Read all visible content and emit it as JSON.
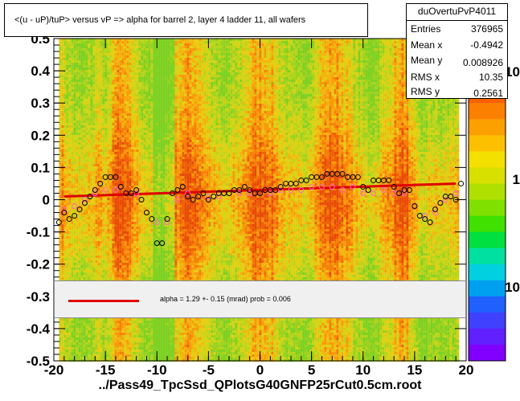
{
  "title": "<(u - uP)/tuP> versus   vP => alpha for barrel 2, layer 4 ladder 11, all wafers",
  "xfile_label": "../Pass49_TpcSsd_QPlotsG40GNFP25rCut0.5cm.root",
  "stats": {
    "name": "duOvertuPvP4011",
    "rows": [
      {
        "label": "Entries",
        "value": "376965"
      },
      {
        "label": "Mean x",
        "value": "-0.4942"
      },
      {
        "label": "Mean y",
        "value": "0.008926"
      },
      {
        "label": "RMS x",
        "value": "10.35"
      },
      {
        "label": "RMS y",
        "value": "0.2561"
      }
    ]
  },
  "legend": {
    "fit_text": "alpha =     1.29 +-  0.15 (mrad) prob = 0.006"
  },
  "colorbar": {
    "tick_labels": [
      "10",
      "1",
      "10"
    ]
  },
  "colors": {
    "fit": "#e00000",
    "profile_black": "#000000",
    "profile_pink": "#ff66cc"
  },
  "chart_data": {
    "type": "heatmap",
    "title": "<(u - uP)/tuP> versus   vP => alpha for barrel 2, layer 4 ladder 11, all wafers",
    "xlim": [
      -20,
      20
    ],
    "ylim": [
      -0.5,
      0.5
    ],
    "x_ticks": [
      "-20",
      "-15",
      "-10",
      "-5",
      "0",
      "5",
      "10",
      "15",
      "20"
    ],
    "y_ticks": [
      "-0.5",
      "-0.4",
      "-0.3",
      "-0.2",
      "-0.1",
      "0",
      "0.1",
      "0.2",
      "0.3",
      "0.4",
      "0.5"
    ],
    "fit_line": {
      "x": [
        -19,
        19
      ],
      "y": [
        0.01,
        0.05
      ]
    },
    "profile_black": {
      "x": [
        -19.5,
        -19,
        -18.5,
        -18,
        -17.5,
        -17,
        -16.5,
        -16,
        -15.5,
        -15,
        -14.5,
        -14,
        -13.5,
        -13,
        -12.5,
        -12,
        -11.5,
        -11,
        -10.5,
        -10,
        -9.5,
        -9,
        -8.5,
        -8,
        -7.5,
        -7,
        -6.5,
        -6,
        -5.5,
        -5,
        -4.5,
        -4,
        -3.5,
        -3,
        -2.5,
        -2,
        -1.5,
        -1,
        -0.5,
        0,
        0.5,
        1,
        1.5,
        2,
        2.5,
        3,
        3.5,
        4,
        4.5,
        5,
        5.5,
        6,
        6.5,
        7,
        7.5,
        8,
        8.5,
        9,
        9.5,
        10,
        10.5,
        11,
        11.5,
        12,
        12.5,
        13,
        13.5,
        14,
        14.5,
        15,
        15.5,
        16,
        16.5,
        17,
        17.5,
        18,
        18.5,
        19,
        19.5
      ],
      "y": [
        -0.07,
        -0.04,
        -0.06,
        -0.05,
        -0.03,
        -0.01,
        0.01,
        0.03,
        0.05,
        0.07,
        0.07,
        0.07,
        0.04,
        0.02,
        0.02,
        0.03,
        0.0,
        -0.04,
        -0.06,
        -0.135,
        -0.135,
        -0.06,
        0.02,
        0.03,
        0.04,
        0.01,
        0.0,
        0.01,
        0.02,
        0.0,
        0.01,
        0.02,
        0.02,
        0.02,
        0.03,
        0.03,
        0.04,
        0.03,
        0.02,
        0.02,
        0.03,
        0.03,
        0.03,
        0.04,
        0.05,
        0.05,
        0.05,
        0.06,
        0.06,
        0.07,
        0.07,
        0.07,
        0.08,
        0.08,
        0.08,
        0.08,
        0.07,
        0.07,
        0.07,
        0.04,
        0.03,
        0.06,
        0.06,
        0.06,
        0.06,
        0.04,
        0.02,
        0.03,
        0.03,
        -0.02,
        -0.05,
        -0.06,
        -0.07,
        -0.03,
        -0.01,
        0.01,
        0.01,
        0.0,
        0.05
      ]
    },
    "profile_pink": {
      "x": [
        -19,
        -18,
        -17,
        -16,
        -15,
        -14,
        -13,
        -12,
        -11,
        -10,
        -9,
        -8,
        -7,
        -6,
        -5,
        -4,
        -3,
        -2,
        -1,
        0,
        1,
        2,
        3,
        4,
        5,
        6,
        7,
        8,
        9,
        10,
        11,
        12,
        13,
        14,
        15,
        16,
        17,
        18,
        19
      ],
      "y": [
        -0.03,
        -0.02,
        0.0,
        0.02,
        0.03,
        0.03,
        0.02,
        0.02,
        -0.04,
        -0.07,
        -0.07,
        0.0,
        0.02,
        0.01,
        0.01,
        0.01,
        0.02,
        0.02,
        0.02,
        0.02,
        0.02,
        0.03,
        0.03,
        0.03,
        0.04,
        0.04,
        0.04,
        0.03,
        0.04,
        0.02,
        0.02,
        0.03,
        0.02,
        0.02,
        -0.02,
        -0.05,
        -0.04,
        0.0,
        0.02
      ]
    }
  }
}
